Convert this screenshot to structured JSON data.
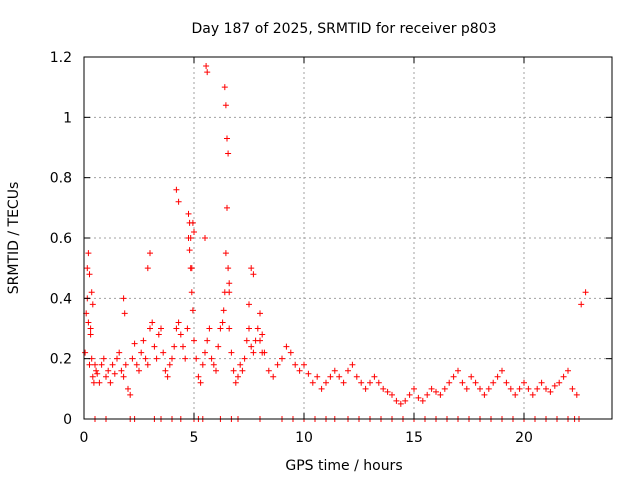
{
  "chart_data": {
    "type": "scatter",
    "title": "Day 187 of 2025, SRMTID for receiver p803",
    "xlabel": "GPS time / hours",
    "ylabel": "SRMTID / TECUs",
    "xlim": [
      0,
      24
    ],
    "ylim": [
      0,
      1.2
    ],
    "xticks": [
      0,
      5,
      10,
      15,
      20
    ],
    "yticks": [
      0,
      0.2,
      0.4,
      0.6,
      0.8,
      1,
      1.2
    ],
    "ytick_labels": [
      "0",
      "0.2",
      "0.4",
      "0.6",
      "0.8",
      "1",
      "1.2"
    ],
    "grid": true,
    "marker": "plus",
    "color": "#ff0000",
    "series": [
      {
        "name": "SRMTID",
        "x": [
          0.05,
          0.1,
          0.15,
          0.2,
          0.25,
          0.3,
          0.35,
          0.4,
          0.45,
          0.5,
          0.55,
          0.6,
          0.7,
          0.8,
          0.9,
          1.0,
          1.1,
          1.2,
          1.3,
          1.4,
          1.5,
          1.6,
          1.7,
          1.8,
          1.9,
          2.0,
          2.1,
          2.2,
          2.3,
          2.4,
          2.5,
          2.6,
          2.7,
          2.8,
          2.9,
          3.0,
          3.1,
          3.2,
          3.3,
          3.4,
          3.5,
          3.6,
          3.7,
          3.8,
          3.9,
          4.0,
          4.1,
          4.2,
          4.3,
          4.4,
          4.5,
          4.6,
          4.7,
          4.75,
          4.8,
          4.85,
          4.9,
          4.95,
          5.0,
          5.1,
          5.2,
          5.3,
          5.4,
          5.5,
          5.6,
          5.7,
          5.8,
          5.9,
          6.0,
          6.1,
          6.2,
          6.3,
          6.35,
          6.4,
          6.45,
          6.5,
          6.55,
          6.6,
          6.7,
          6.8,
          6.9,
          7.0,
          7.1,
          7.2,
          7.3,
          7.4,
          7.5,
          7.6,
          7.7,
          7.8,
          7.9,
          8.0,
          8.1,
          8.2,
          8.4,
          8.6,
          8.8,
          9.0,
          9.2,
          9.4,
          9.6,
          9.8,
          10.0,
          10.2,
          10.4,
          10.6,
          10.8,
          11.0,
          11.2,
          11.4,
          11.6,
          11.8,
          12.0,
          12.2,
          12.4,
          12.6,
          12.8,
          13.0,
          13.2,
          13.4,
          13.6,
          13.8,
          14.0,
          14.2,
          14.4,
          14.6,
          14.8,
          15.0,
          15.2,
          15.4,
          15.6,
          15.8,
          16.0,
          16.2,
          16.4,
          16.6,
          16.8,
          17.0,
          17.2,
          17.4,
          17.6,
          17.8,
          18.0,
          18.2,
          18.4,
          18.6,
          18.8,
          19.0,
          19.2,
          19.4,
          19.6,
          19.8,
          20.0,
          20.2,
          20.4,
          20.6,
          20.8,
          21.0,
          21.2,
          21.4,
          21.6,
          21.8,
          22.0,
          22.2,
          22.4,
          22.6,
          22.8,
          0.15,
          0.2,
          0.25,
          0.3,
          0.35,
          0.4,
          1.8,
          1.85,
          2.9,
          3.0,
          4.2,
          4.3,
          4.75,
          4.8,
          4.85,
          4.9,
          4.95,
          5.0,
          5.5,
          5.55,
          5.6,
          6.4,
          6.45,
          6.5,
          6.55,
          6.6,
          6.6,
          7.5,
          7.6,
          7.7,
          8.0,
          8.1,
          19.0,
          22.3,
          0.5,
          1.0,
          2.1,
          2.3,
          3.2,
          3.5,
          4.0,
          4.4,
          5.0,
          5.2,
          5.4,
          6.2,
          6.7,
          7.0,
          8.0,
          9.0,
          9.5,
          10.0,
          10.5,
          11.0,
          11.4,
          12.0,
          12.5,
          13.0,
          13.5,
          14.0,
          14.5,
          15.0,
          15.5,
          16.0,
          16.5,
          17.0,
          17.5,
          18.0,
          18.5,
          19.0,
          19.5,
          20.0,
          20.5,
          21.0,
          21.5,
          22.0,
          22.5
        ],
        "y": [
          0.22,
          0.35,
          0.4,
          0.32,
          0.18,
          0.28,
          0.2,
          0.14,
          0.12,
          0.18,
          0.16,
          0.15,
          0.12,
          0.18,
          0.2,
          0.14,
          0.16,
          0.12,
          0.18,
          0.15,
          0.2,
          0.22,
          0.16,
          0.14,
          0.18,
          0.1,
          0.08,
          0.2,
          0.25,
          0.18,
          0.16,
          0.22,
          0.26,
          0.2,
          0.18,
          0.3,
          0.32,
          0.24,
          0.2,
          0.28,
          0.3,
          0.22,
          0.16,
          0.14,
          0.18,
          0.2,
          0.24,
          0.3,
          0.32,
          0.28,
          0.24,
          0.2,
          0.3,
          0.6,
          0.56,
          0.5,
          0.42,
          0.36,
          0.26,
          0.2,
          0.14,
          0.12,
          0.18,
          0.22,
          0.26,
          0.3,
          0.2,
          0.18,
          0.16,
          0.24,
          0.3,
          0.32,
          0.36,
          0.42,
          0.55,
          0.7,
          0.5,
          0.3,
          0.22,
          0.16,
          0.12,
          0.14,
          0.18,
          0.16,
          0.2,
          0.26,
          0.3,
          0.24,
          0.22,
          0.26,
          0.3,
          0.35,
          0.28,
          0.22,
          0.16,
          0.14,
          0.18,
          0.2,
          0.24,
          0.22,
          0.18,
          0.16,
          0.18,
          0.15,
          0.12,
          0.14,
          0.1,
          0.12,
          0.14,
          0.16,
          0.14,
          0.12,
          0.16,
          0.18,
          0.14,
          0.12,
          0.1,
          0.12,
          0.14,
          0.12,
          0.1,
          0.09,
          0.08,
          0.06,
          0.05,
          0.06,
          0.08,
          0.1,
          0.07,
          0.06,
          0.08,
          0.1,
          0.09,
          0.08,
          0.1,
          0.12,
          0.14,
          0.16,
          0.12,
          0.1,
          0.14,
          0.12,
          0.1,
          0.08,
          0.1,
          0.12,
          0.14,
          0.16,
          0.12,
          0.1,
          0.08,
          0.1,
          0.12,
          0.1,
          0.08,
          0.1,
          0.12,
          0.1,
          0.09,
          0.11,
          0.12,
          0.14,
          0.16,
          0.1,
          0.08,
          0.38,
          0.42,
          0.5,
          0.55,
          0.48,
          0.3,
          0.42,
          0.38,
          0.4,
          0.35,
          0.5,
          0.55,
          0.76,
          0.72,
          0.68,
          0.65,
          0.6,
          0.5,
          0.65,
          0.62,
          0.6,
          1.17,
          1.15,
          1.1,
          1.04,
          0.93,
          0.88,
          0.45,
          0.42,
          0.38,
          0.5,
          0.48,
          0.26,
          0.22,
          0,
          0,
          0,
          0,
          0,
          0,
          0,
          0,
          0,
          0,
          0,
          0,
          0,
          0,
          0,
          0,
          0,
          0,
          0,
          0,
          0,
          0,
          0,
          0,
          0,
          0,
          0,
          0,
          0,
          0,
          0,
          0,
          0,
          0,
          0,
          0,
          0,
          0,
          0,
          0,
          0,
          0,
          0,
          0,
          0
        ]
      }
    ]
  }
}
